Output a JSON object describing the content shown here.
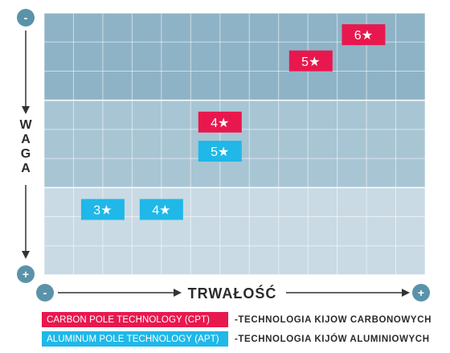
{
  "chart_data": {
    "type": "scatter",
    "x_axis": {
      "label": "TRWAŁOŚĆ",
      "min_label": "-",
      "max_label": "+"
    },
    "y_axis": {
      "label": [
        "W",
        "A",
        "G",
        "A"
      ],
      "top_label": "-",
      "bottom_label": "+"
    },
    "xlim": [
      0,
      13
    ],
    "ylim": [
      0,
      9
    ],
    "grid": true,
    "bands": [
      {
        "from": 0,
        "to": 3,
        "color": "#8fb3c6"
      },
      {
        "from": 3,
        "to": 6,
        "color": "#a8c5d4"
      },
      {
        "from": 6,
        "to": 9,
        "color": "#c9dae4"
      }
    ],
    "series": [
      {
        "name": "CARBON POLE TECHNOLOGY (CPT)",
        "color": "#e8184e",
        "points": [
          {
            "x": 10.9,
            "y": 0.75,
            "label": "6★"
          },
          {
            "x": 9.1,
            "y": 1.65,
            "label": "5★"
          },
          {
            "x": 6.0,
            "y": 3.75,
            "label": "4★"
          }
        ]
      },
      {
        "name": "ALUMINUM POLE TECHNOLOGY (APT)",
        "color": "#1fb8e8",
        "points": [
          {
            "x": 6.0,
            "y": 4.75,
            "label": "5★"
          },
          {
            "x": 2.0,
            "y": 6.75,
            "label": "3★"
          },
          {
            "x": 4.0,
            "y": 6.75,
            "label": "4★"
          }
        ]
      }
    ],
    "legend": {
      "placement": "bottom",
      "items": [
        {
          "label": "CARBON POLE TECHNOLOGY (CPT)",
          "description": "-TECHNOLOGIA KIJOW CARBONOWYCH",
          "color": "#e8184e"
        },
        {
          "label": "ALUMINUM POLE TECHNOLOGY (APT)",
          "description": "-TECHNOLOGIA KIJÓW ALUMINIOWYCH",
          "color": "#1fb8e8"
        }
      ]
    }
  },
  "colors": {
    "axis_circle": "#5a93a9",
    "arrow": "#333333",
    "grid_line": "#ffffff"
  }
}
